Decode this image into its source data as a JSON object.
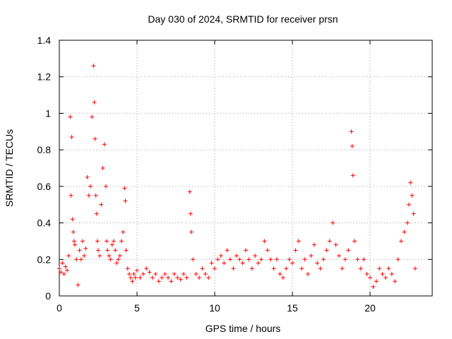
{
  "chart_data": {
    "type": "scatter",
    "title": "Day 030 of 2024, SRMTID for receiver prsn",
    "xlabel": "GPS time / hours",
    "ylabel": "SRMTID / TECUs",
    "xlim": [
      0,
      24
    ],
    "ylim": [
      0,
      1.4
    ],
    "x_ticks": [
      0,
      5,
      10,
      15,
      20
    ],
    "x_tick_labels": [
      "0",
      "5",
      "10",
      "15",
      "20"
    ],
    "y_ticks": [
      0,
      0.2,
      0.4,
      0.6,
      0.8,
      1.0,
      1.2,
      1.4
    ],
    "y_tick_labels": [
      "0",
      "0.2",
      "0.4",
      "0.6",
      "0.8",
      "1",
      "1.2",
      "1.4"
    ],
    "grid": true,
    "marker": "+",
    "marker_color": "#ff0000",
    "series": [
      {
        "name": "SRMTID",
        "x": [
          0.0,
          0.1,
          0.2,
          0.3,
          0.4,
          0.5,
          0.6,
          0.7,
          0.75,
          0.8,
          0.85,
          0.9,
          0.95,
          1.0,
          1.1,
          1.2,
          1.3,
          1.4,
          1.5,
          1.6,
          1.7,
          1.8,
          1.9,
          2.0,
          2.1,
          2.2,
          2.25,
          2.3,
          2.35,
          2.4,
          2.45,
          2.5,
          2.6,
          2.7,
          2.8,
          2.9,
          3.0,
          3.05,
          3.1,
          3.2,
          3.3,
          3.4,
          3.5,
          3.6,
          3.7,
          3.8,
          3.9,
          4.0,
          4.1,
          4.2,
          4.25,
          4.3,
          4.4,
          4.5,
          4.6,
          4.7,
          4.8,
          4.9,
          5.0,
          5.2,
          5.4,
          5.6,
          5.8,
          6.0,
          6.2,
          6.4,
          6.6,
          6.8,
          7.0,
          7.2,
          7.4,
          7.6,
          7.8,
          8.0,
          8.2,
          8.4,
          8.45,
          8.5,
          8.6,
          8.8,
          9.0,
          9.2,
          9.4,
          9.6,
          9.8,
          10.0,
          10.2,
          10.4,
          10.6,
          10.8,
          11.0,
          11.2,
          11.4,
          11.6,
          11.8,
          12.0,
          12.2,
          12.4,
          12.6,
          12.8,
          13.0,
          13.2,
          13.4,
          13.6,
          13.8,
          14.0,
          14.2,
          14.4,
          14.6,
          14.8,
          15.0,
          15.2,
          15.4,
          15.6,
          15.8,
          16.0,
          16.2,
          16.4,
          16.6,
          16.8,
          17.0,
          17.2,
          17.4,
          17.6,
          17.8,
          18.0,
          18.2,
          18.4,
          18.6,
          18.8,
          18.85,
          18.9,
          19.0,
          19.2,
          19.4,
          19.6,
          19.8,
          20.0,
          20.2,
          20.4,
          20.6,
          20.8,
          21.0,
          21.2,
          21.4,
          21.6,
          21.8,
          22.0,
          22.2,
          22.4,
          22.5,
          22.6,
          22.7,
          22.8,
          22.9
        ],
        "y": [
          0.15,
          0.13,
          0.18,
          0.12,
          0.16,
          0.14,
          0.22,
          0.98,
          0.55,
          0.87,
          0.42,
          0.35,
          0.3,
          0.28,
          0.2,
          0.06,
          0.25,
          0.2,
          0.3,
          0.22,
          0.26,
          0.65,
          0.55,
          0.6,
          0.98,
          1.26,
          1.06,
          0.86,
          0.55,
          0.45,
          0.3,
          0.25,
          0.22,
          0.5,
          0.7,
          0.83,
          0.6,
          0.3,
          0.25,
          0.22,
          0.2,
          0.28,
          0.3,
          0.25,
          0.18,
          0.2,
          0.22,
          0.3,
          0.35,
          0.59,
          0.52,
          0.25,
          0.15,
          0.12,
          0.1,
          0.08,
          0.12,
          0.1,
          0.14,
          0.1,
          0.12,
          0.15,
          0.13,
          0.1,
          0.12,
          0.08,
          0.1,
          0.12,
          0.1,
          0.08,
          0.12,
          0.1,
          0.09,
          0.12,
          0.1,
          0.57,
          0.45,
          0.35,
          0.2,
          0.12,
          0.1,
          0.15,
          0.12,
          0.1,
          0.18,
          0.15,
          0.2,
          0.22,
          0.18,
          0.25,
          0.2,
          0.15,
          0.22,
          0.2,
          0.18,
          0.25,
          0.2,
          0.15,
          0.22,
          0.18,
          0.2,
          0.3,
          0.25,
          0.2,
          0.15,
          0.2,
          0.12,
          0.1,
          0.15,
          0.2,
          0.18,
          0.25,
          0.3,
          0.15,
          0.2,
          0.12,
          0.22,
          0.28,
          0.18,
          0.15,
          0.2,
          0.25,
          0.3,
          0.4,
          0.28,
          0.22,
          0.15,
          0.2,
          0.25,
          0.9,
          0.82,
          0.66,
          0.3,
          0.2,
          0.15,
          0.2,
          0.12,
          0.1,
          0.05,
          0.08,
          0.15,
          0.12,
          0.1,
          0.15,
          0.12,
          0.08,
          0.2,
          0.3,
          0.35,
          0.4,
          0.5,
          0.62,
          0.55,
          0.45,
          0.15
        ]
      }
    ]
  }
}
